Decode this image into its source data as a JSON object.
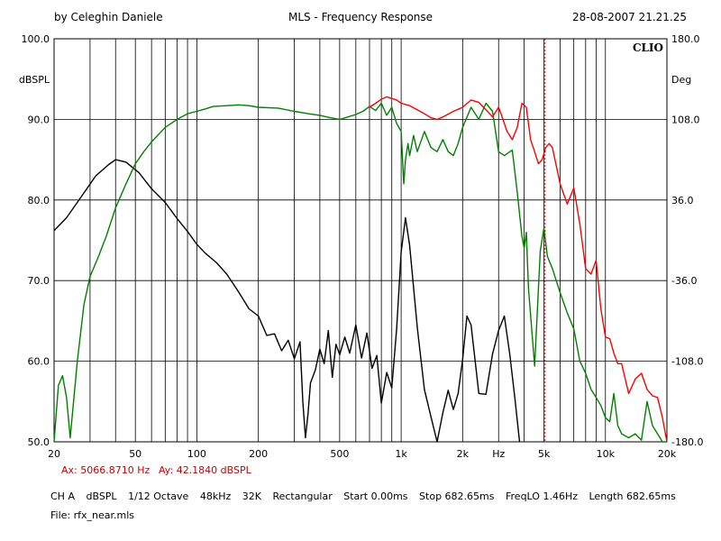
{
  "header": {
    "author": "by Celeghin Daniele",
    "title": "MLS - Frequency Response",
    "date": "28-08-2007 21.21.25"
  },
  "brand": "CLIO",
  "cursor": {
    "x_label": "Ax: 5066.8710 Hz",
    "y_label": "Ay: 42.1840 dBSPL"
  },
  "settings": [
    "CH A",
    "dBSPL",
    "1/12 Octave",
    "48kHz",
    "32K",
    "Rectangular",
    "Start 0.00ms",
    "Stop 682.65ms",
    "FreqLO 1.46Hz",
    "Length 682.65ms"
  ],
  "file_label": "File: rfx_near.mls",
  "colors": {
    "grid": "#000000",
    "black_series": "#000000",
    "green_series": "#008000",
    "red_series": "#ff0000",
    "cursor": "#cc0000"
  },
  "chart_data": {
    "type": "line",
    "title": "MLS - Frequency Response",
    "xscale": "log",
    "xlim": [
      20,
      20000
    ],
    "ylim": [
      50,
      100
    ],
    "y2lim": [
      -180,
      180
    ],
    "ylabel": "dBSPL",
    "y2label": "Deg",
    "xlabel": "Hz",
    "xticks": [
      {
        "v": 20,
        "t": "20"
      },
      {
        "v": 50,
        "t": "50"
      },
      {
        "v": 100,
        "t": "100"
      },
      {
        "v": 200,
        "t": "200"
      },
      {
        "v": 500,
        "t": "500"
      },
      {
        "v": 1000,
        "t": "1k"
      },
      {
        "v": 2000,
        "t": "2k"
      },
      {
        "v": 3000,
        "t": "Hz"
      },
      {
        "v": 5000,
        "t": "5k"
      },
      {
        "v": 10000,
        "t": "10k"
      },
      {
        "v": 20000,
        "t": "20k"
      }
    ],
    "yticks": [
      "100.0",
      "90.0",
      "80.0",
      "70.0",
      "60.0",
      "50.0"
    ],
    "y2ticks": [
      "180.0",
      "108.0",
      "36.0",
      "-36.0",
      "-108.0",
      "-180.0"
    ],
    "cursor_x": 5066.871,
    "series": [
      {
        "color": "#000000",
        "x": [
          20,
          23,
          27,
          32,
          37,
          40,
          45,
          52,
          60,
          70,
          80,
          90,
          100,
          110,
          125,
          140,
          160,
          180,
          200,
          220,
          240,
          260,
          280,
          300,
          320,
          330,
          340,
          350,
          360,
          380,
          400,
          420,
          440,
          460,
          480,
          500,
          530,
          560,
          600,
          640,
          680,
          720,
          760,
          800,
          850,
          900,
          950,
          1000,
          1050,
          1100,
          1200,
          1300,
          1400,
          1500,
          1600,
          1700,
          1800,
          1900,
          2000,
          2100,
          2200,
          2400,
          2600,
          2800,
          3000,
          3200,
          3400,
          3600,
          3800
        ],
        "y": [
          76.2,
          77.8,
          80.3,
          83.0,
          84.4,
          85.0,
          84.7,
          83.4,
          81.4,
          79.7,
          77.7,
          76.1,
          74.5,
          73.4,
          72.2,
          70.8,
          68.6,
          66.5,
          65.6,
          63.2,
          63.4,
          61.3,
          62.6,
          60.3,
          62.4,
          55.0,
          50.5,
          53.5,
          57.3,
          58.9,
          61.5,
          59.7,
          63.8,
          58.0,
          62.1,
          60.8,
          63.0,
          61.0,
          64.5,
          60.4,
          63.5,
          59.1,
          60.7,
          54.8,
          58.6,
          56.7,
          64.0,
          73.5,
          77.8,
          74.4,
          64.2,
          56.5,
          53.1,
          50.0,
          53.6,
          56.4,
          54.0,
          56.0,
          60.2,
          65.6,
          64.5,
          56.0,
          55.9,
          60.9,
          63.8,
          65.6,
          60.9,
          55.5,
          50.0
        ]
      },
      {
        "color": "#008000",
        "x": [
          20,
          21,
          22,
          23,
          24,
          26,
          28,
          30,
          33,
          36,
          40,
          45,
          50,
          55,
          60,
          70,
          80,
          90,
          100,
          110,
          120,
          140,
          160,
          180,
          200,
          250,
          300,
          350,
          400,
          450,
          500,
          550,
          600,
          650,
          700,
          750,
          800,
          850,
          900,
          950,
          1000,
          1030,
          1050,
          1080,
          1100,
          1150,
          1200,
          1300,
          1400,
          1500,
          1600,
          1700,
          1800,
          1900,
          2000,
          2200,
          2400,
          2600,
          2800,
          3000,
          3200,
          3500,
          3700,
          3900,
          4000,
          4100,
          4200,
          4500,
          4800,
          5000,
          5200,
          5500,
          6000,
          6500,
          7000,
          7500,
          8000,
          8500,
          9000,
          9500,
          10000,
          10500,
          11000,
          11500,
          12000,
          13000,
          14000,
          15000,
          16000,
          17000,
          18000,
          19000,
          20000
        ],
        "y": [
          50.0,
          57.0,
          58.2,
          55.5,
          50.5,
          60.0,
          67.0,
          70.5,
          73.0,
          75.5,
          79.0,
          82.0,
          84.5,
          86.0,
          87.2,
          89.0,
          90.0,
          90.7,
          91.0,
          91.3,
          91.6,
          91.7,
          91.8,
          91.7,
          91.5,
          91.4,
          91.0,
          90.7,
          90.5,
          90.2,
          90.0,
          90.3,
          90.6,
          91.0,
          91.6,
          91.1,
          92.0,
          90.5,
          91.5,
          89.5,
          88.5,
          82.0,
          85.0,
          87.0,
          85.5,
          88.0,
          86.0,
          88.5,
          86.5,
          86.0,
          87.5,
          86.0,
          85.5,
          87.0,
          89.0,
          91.5,
          90.0,
          92.0,
          91.0,
          86.0,
          85.5,
          86.2,
          81.0,
          75.5,
          74.0,
          76.0,
          69.0,
          59.4,
          73.7,
          76.5,
          73.0,
          71.5,
          68.5,
          66.0,
          64.0,
          60.0,
          58.5,
          56.5,
          55.5,
          54.5,
          53.0,
          52.5,
          56.0,
          52.0,
          51.0,
          50.5,
          51.0,
          50.2,
          55.0,
          52.0,
          51.0,
          50.0,
          50.0
        ]
      },
      {
        "color": "#ff0000",
        "x": [
          700,
          750,
          800,
          850,
          900,
          950,
          1000,
          1100,
          1200,
          1300,
          1400,
          1500,
          1600,
          1800,
          2000,
          2200,
          2400,
          2600,
          2800,
          3000,
          3100,
          3300,
          3500,
          3700,
          3900,
          4100,
          4300,
          4500,
          4700,
          4900,
          5100,
          5300,
          5500,
          6000,
          6500,
          7000,
          7500,
          8000,
          8500,
          9000,
          9500,
          10000,
          10500,
          11000,
          11500,
          12000,
          13000,
          14000,
          15000,
          16000,
          17000,
          18000,
          19000,
          20000
        ],
        "y": [
          91.5,
          92.0,
          92.5,
          92.8,
          92.6,
          92.4,
          92.0,
          91.7,
          91.2,
          90.7,
          90.2,
          90.0,
          90.3,
          91.0,
          91.5,
          92.4,
          92.1,
          91.2,
          90.3,
          91.5,
          90.5,
          88.5,
          87.5,
          89.0,
          92.0,
          91.5,
          87.5,
          86.0,
          84.5,
          85.0,
          86.5,
          87.0,
          86.5,
          82.0,
          79.5,
          81.5,
          77.0,
          71.5,
          70.8,
          72.5,
          66.5,
          63.0,
          62.8,
          61.0,
          59.7,
          59.7,
          56.0,
          57.8,
          58.5,
          56.5,
          55.7,
          55.5,
          53.0,
          50.0
        ]
      }
    ]
  }
}
